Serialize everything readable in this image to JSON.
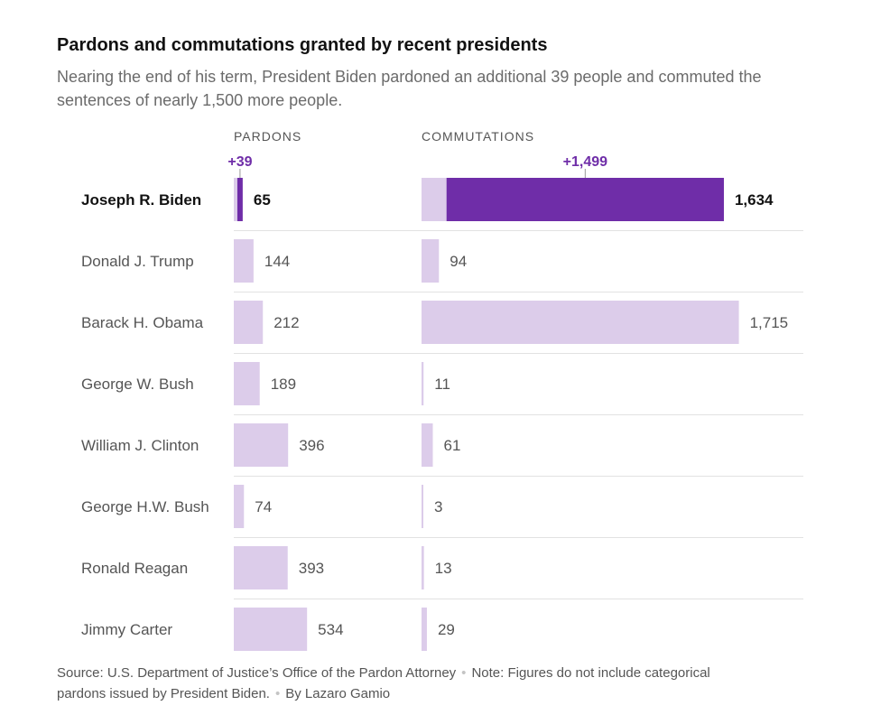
{
  "header": {
    "title": "Pardons and commutations granted by recent presidents",
    "subtitle": "Nearing the end of his term, President Biden pardoned an additional 39 people and commuted the sentences of nearly 1,500 more people."
  },
  "footer": {
    "source": "Source: U.S. Department of Justice’s Office of the Pardon Attorney",
    "note": "Note: Figures do not include categorical pardons issued by President Biden.",
    "byline": "By Lazaro Gamio"
  },
  "colors": {
    "highlight": "#6f2da8",
    "bar": "#dcccea",
    "delta_text": "#6f2da8",
    "divider": "#e2e2e2"
  },
  "chart_data": {
    "type": "bar",
    "orientation": "horizontal",
    "title": "Pardons and commutations granted by recent presidents",
    "categories": [
      "Joseph R. Biden",
      "Donald J. Trump",
      "Barack H. Obama",
      "George W. Bush",
      "William J. Clinton",
      "George H.W. Bush",
      "Ronald Reagan",
      "Jimmy Carter"
    ],
    "highlight_category": "Joseph R. Biden",
    "series": [
      {
        "name": "PARDONS",
        "values": [
          65,
          144,
          212,
          189,
          396,
          74,
          393,
          534
        ],
        "labels": [
          "65",
          "144",
          "212",
          "189",
          "396",
          "74",
          "393",
          "534"
        ],
        "highlight_addition": {
          "value": 39,
          "label": "+39"
        }
      },
      {
        "name": "COMMUTATIONS",
        "values": [
          1634,
          94,
          1715,
          11,
          61,
          3,
          13,
          29
        ],
        "labels": [
          "1,634",
          "94",
          "1,715",
          "11",
          "61",
          "3",
          "13",
          "29"
        ],
        "highlight_addition": {
          "value": 1499,
          "label": "+1,499"
        }
      }
    ],
    "grid": false,
    "legend": "none"
  }
}
